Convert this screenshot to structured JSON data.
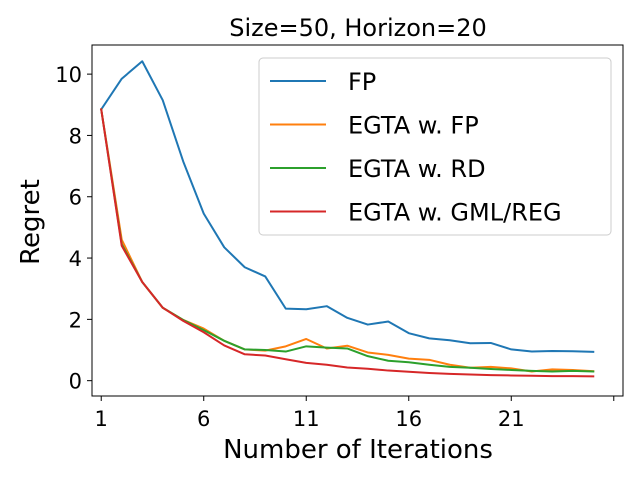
{
  "chart_data": {
    "type": "line",
    "title": "Size=50, Horizon=20",
    "xlabel": "Number of Iterations",
    "ylabel": "Regret",
    "xlim": [
      0.55,
      26.45
    ],
    "ylim": [
      -0.5,
      10.95
    ],
    "xticks": [
      1,
      6,
      11,
      16,
      21,
      26
    ],
    "xtick_labels": [
      "1",
      "6",
      "11",
      "16",
      "21",
      ""
    ],
    "yticks": [
      0,
      2,
      4,
      6,
      8,
      10
    ],
    "legend_position": "top-right",
    "grid": false,
    "x": [
      1,
      2,
      3,
      4,
      5,
      6,
      7,
      8,
      9,
      10,
      11,
      12,
      13,
      14,
      15,
      16,
      17,
      18,
      19,
      20,
      21,
      22,
      23,
      24,
      25
    ],
    "series": [
      {
        "name": "FP",
        "color": "#1f77b4",
        "values": [
          8.85,
          9.85,
          10.42,
          9.15,
          7.15,
          5.45,
          4.35,
          3.7,
          3.4,
          2.35,
          2.33,
          2.43,
          2.05,
          1.83,
          1.93,
          1.55,
          1.38,
          1.32,
          1.22,
          1.23,
          1.02,
          0.95,
          0.97,
          0.96,
          0.94
        ]
      },
      {
        "name": "EGTA w. FP",
        "color": "#ff7f0e",
        "values": [
          8.85,
          4.6,
          3.22,
          2.38,
          1.98,
          1.7,
          1.3,
          1.02,
          0.98,
          1.12,
          1.36,
          1.05,
          1.14,
          0.92,
          0.84,
          0.72,
          0.68,
          0.52,
          0.42,
          0.45,
          0.4,
          0.3,
          0.37,
          0.35,
          0.31
        ]
      },
      {
        "name": "EGTA w. RD",
        "color": "#2ca02c",
        "values": [
          8.85,
          4.45,
          3.22,
          2.38,
          1.98,
          1.65,
          1.3,
          1.02,
          1.0,
          0.95,
          1.12,
          1.08,
          1.05,
          0.8,
          0.65,
          0.6,
          0.52,
          0.45,
          0.42,
          0.38,
          0.35,
          0.32,
          0.3,
          0.32,
          0.3
        ]
      },
      {
        "name": "EGTA w. GML/REG",
        "color": "#d62728",
        "values": [
          8.85,
          4.4,
          3.22,
          2.38,
          1.95,
          1.58,
          1.15,
          0.86,
          0.82,
          0.7,
          0.58,
          0.52,
          0.43,
          0.39,
          0.33,
          0.29,
          0.25,
          0.22,
          0.2,
          0.18,
          0.17,
          0.16,
          0.15,
          0.15,
          0.14
        ]
      }
    ]
  }
}
